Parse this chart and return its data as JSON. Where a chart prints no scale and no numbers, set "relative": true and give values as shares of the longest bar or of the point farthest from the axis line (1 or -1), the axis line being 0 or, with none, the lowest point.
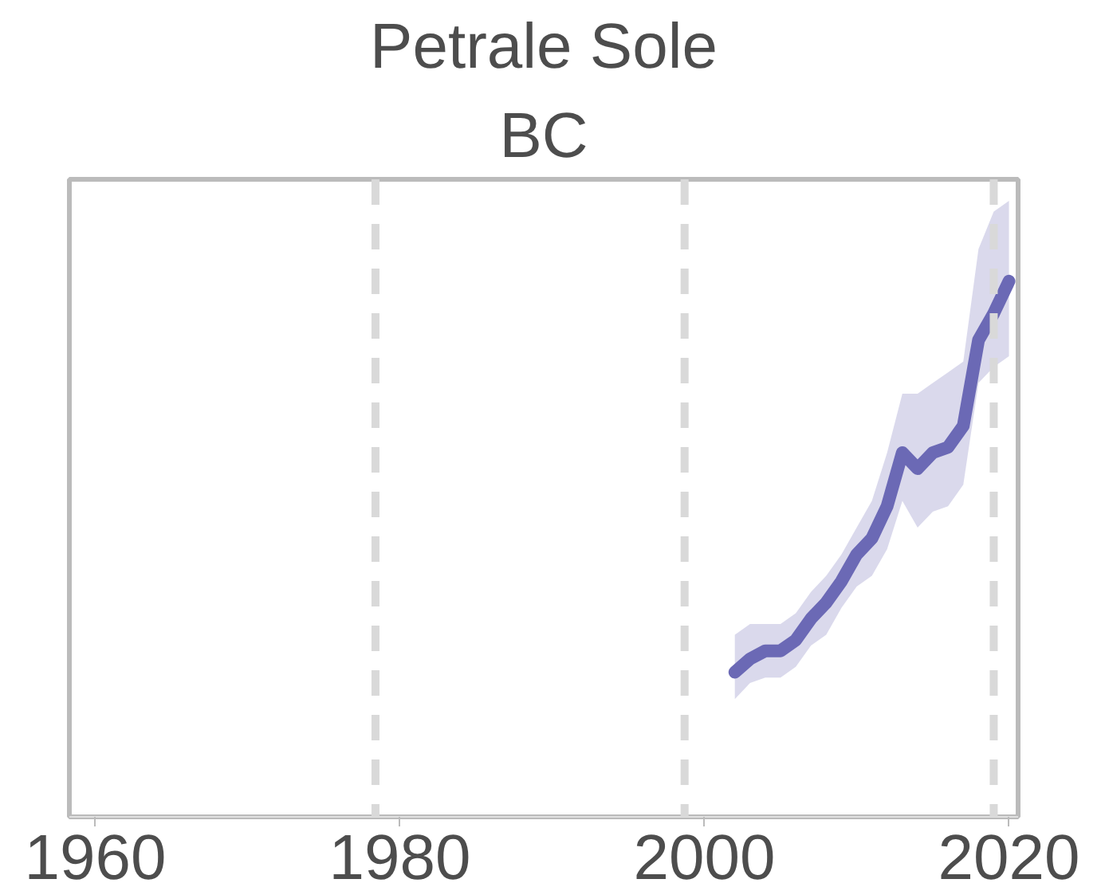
{
  "chart_data": {
    "type": "line",
    "title": "Petrale Sole",
    "subtitle": "BC",
    "relative": true,
    "xlim": [
      1958.3,
      2020.6
    ],
    "xticks": [
      1960,
      1980,
      2000,
      2020
    ],
    "grid": false,
    "line_style": "solid",
    "marker": "none",
    "series": [
      {
        "color": "#6b69b5",
        "x": [
          2002,
          2003,
          2004,
          2005,
          2006,
          2007,
          2008,
          2009,
          2010,
          2011,
          2012,
          2013,
          2014,
          2015,
          2016,
          2017,
          2018,
          2019,
          2020
        ],
        "values": [
          0.27,
          0.295,
          0.31,
          0.31,
          0.33,
          0.37,
          0.4,
          0.44,
          0.49,
          0.52,
          0.58,
          0.68,
          0.65,
          0.68,
          0.69,
          0.73,
          0.89,
          0.94,
          1.0
        ],
        "lower": [
          0.22,
          0.25,
          0.26,
          0.26,
          0.28,
          0.32,
          0.34,
          0.39,
          0.43,
          0.45,
          0.5,
          0.59,
          0.54,
          0.57,
          0.58,
          0.62,
          0.81,
          0.84,
          0.86
        ],
        "upper": [
          0.34,
          0.36,
          0.36,
          0.36,
          0.38,
          0.42,
          0.45,
          0.49,
          0.54,
          0.59,
          0.68,
          0.79,
          0.79,
          0.81,
          0.83,
          0.85,
          1.06,
          1.13,
          1.15
        ]
      }
    ],
    "ref_lines": [
      {
        "axis": "x",
        "value": 1978.4,
        "color": "#d9d9d9",
        "line_style": "dashed"
      },
      {
        "axis": "x",
        "value": 1998.7,
        "color": "#d9d9d9",
        "line_style": "dashed"
      },
      {
        "axis": "x",
        "value": 2019.0,
        "color": "#d9d9d9",
        "line_style": "dashed"
      }
    ]
  }
}
